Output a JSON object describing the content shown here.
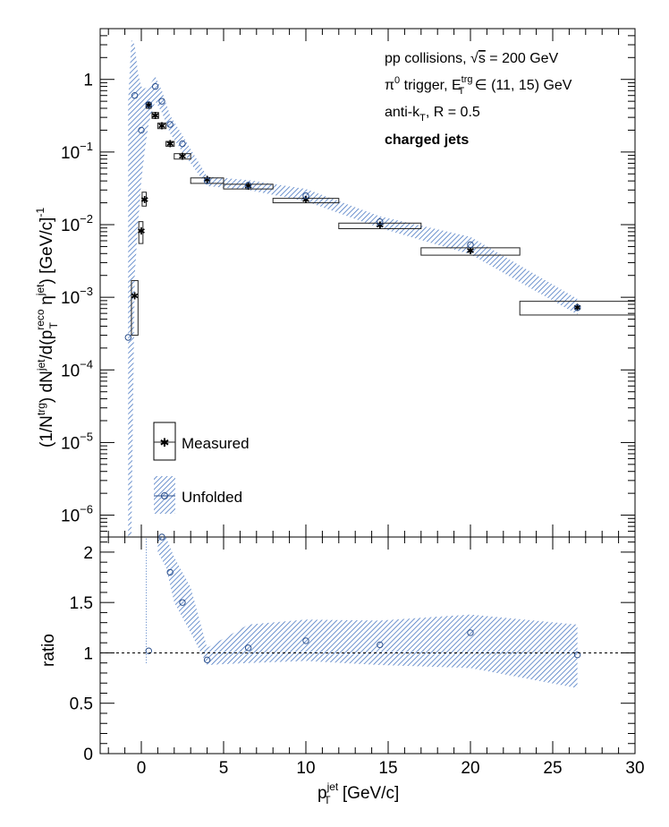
{
  "chart_data": {
    "type": "scatter",
    "colors": {
      "measured": "#222222",
      "unfolded": "#2b4f8c",
      "band": "#4a78c2"
    },
    "annotations": [
      "pp collisions, ",
      "π",
      "0",
      " trigger, E",
      "trg",
      "T",
      " ∈ (11, 15) GeV",
      "anti-k",
      "T",
      ", R = 0.5",
      "charged jets",
      "√",
      "s",
      " = 200 GeV"
    ],
    "top_panel": {
      "y_scale": "log",
      "ylim": [
        5e-07,
        5
      ],
      "xlim": [
        -2.5,
        30
      ],
      "ylabel_parts": [
        "(1/N",
        "trg",
        ") dN",
        "jet",
        "/d(p",
        "reco",
        "T",
        " η",
        "jet",
        ") [GeV/c]",
        "-1"
      ],
      "yticks": [
        {
          "value": 1,
          "label": "1",
          "exp": ""
        },
        {
          "value": 0.1,
          "label": "10",
          "exp": "−1"
        },
        {
          "value": 0.01,
          "label": "10",
          "exp": "−2"
        },
        {
          "value": 0.001,
          "label": "10",
          "exp": "−3"
        },
        {
          "value": 0.0001,
          "label": "10",
          "exp": "−4"
        },
        {
          "value": 1e-05,
          "label": "10",
          "exp": "−5"
        },
        {
          "value": 1e-06,
          "label": "10",
          "exp": "−6"
        }
      ],
      "series": [
        {
          "name": "Measured",
          "x": [
            -0.4,
            0.0,
            0.2,
            0.45,
            0.85,
            1.25,
            1.75,
            2.5,
            4.0,
            6.5,
            10.0,
            14.5,
            20.0,
            26.5
          ],
          "y": [
            0.00105,
            0.0082,
            0.022,
            0.44,
            0.32,
            0.23,
            0.13,
            0.088,
            0.042,
            0.034,
            0.022,
            0.0098,
            0.0044,
            0.00072
          ],
          "box_x": [
            [
              -0.6,
              -0.2
            ],
            [
              -0.15,
              0.1
            ],
            [
              0.05,
              0.3
            ],
            [
              0.3,
              0.6
            ],
            [
              0.65,
              1.05
            ],
            [
              1.0,
              1.5
            ],
            [
              1.5,
              2.0
            ],
            [
              2.0,
              3.0
            ],
            [
              3.0,
              5.0
            ],
            [
              5.0,
              8.0
            ],
            [
              8.0,
              12.0
            ],
            [
              12.0,
              17.0
            ],
            [
              17.0,
              23.0
            ],
            [
              23.0,
              30.0
            ]
          ],
          "box_y": [
            [
              0.0003,
              0.0017
            ],
            [
              0.0055,
              0.011
            ],
            [
              0.018,
              0.028
            ],
            [
              0.4,
              0.48
            ],
            [
              0.29,
              0.35
            ],
            [
              0.21,
              0.25
            ],
            [
              0.12,
              0.14
            ],
            [
              0.08,
              0.095
            ],
            [
              0.037,
              0.044
            ],
            [
              0.031,
              0.036
            ],
            [
              0.02,
              0.023
            ],
            [
              0.0088,
              0.0105
            ],
            [
              0.0038,
              0.0048
            ],
            [
              0.00057,
              0.00088
            ]
          ]
        },
        {
          "name": "Unfolded",
          "x": [
            -0.8,
            -0.4,
            0.0,
            0.45,
            0.85,
            1.25,
            1.75,
            2.5,
            4.0,
            6.5,
            10.0,
            14.5,
            20.0,
            26.5
          ],
          "y": [
            0.00028,
            0.6,
            0.2,
            0.45,
            0.8,
            0.5,
            0.24,
            0.13,
            0.04,
            0.035,
            0.025,
            0.011,
            0.0053,
            0.00072
          ],
          "band_x": [
            -0.8,
            -0.6,
            -0.4,
            -0.2,
            0.0,
            0.2,
            0.45,
            0.85,
            1.25,
            1.75,
            2.5,
            4.0,
            6.5,
            10.0,
            14.5,
            20.0,
            26.5
          ],
          "band_lo": [
            5e-07,
            5e-07,
            0.002,
            0.01,
            0.04,
            0.1,
            0.25,
            0.5,
            0.35,
            0.18,
            0.1,
            0.034,
            0.03,
            0.021,
            0.009,
            0.0039,
            0.00058
          ],
          "band_hi": [
            0.5,
            3.5,
            3.0,
            1.2,
            0.8,
            0.75,
            0.8,
            1.1,
            0.7,
            0.32,
            0.17,
            0.046,
            0.041,
            0.031,
            0.013,
            0.0068,
            0.00095
          ]
        }
      ],
      "legend": [
        "Measured",
        "Unfolded"
      ]
    },
    "bottom_panel": {
      "ylim": [
        0,
        2.15
      ],
      "ylabel": "ratio",
      "xlabel_parts": [
        "p",
        "jet",
        "T",
        " [GeV/c]"
      ],
      "xticks": [
        0,
        5,
        10,
        15,
        20,
        25,
        30
      ],
      "yticks": [
        0,
        0.5,
        1,
        1.5,
        2
      ],
      "ytick_labels": [
        "0",
        "0.5",
        "1",
        "1.5",
        "2"
      ],
      "reference_line": 1,
      "ratio": {
        "x": [
          0.45,
          1.25,
          1.75,
          2.5,
          4.0,
          6.5,
          10.0,
          14.5,
          20.0,
          26.5
        ],
        "y": [
          1.02,
          2.15,
          1.8,
          1.5,
          0.93,
          1.05,
          1.12,
          1.08,
          1.2,
          0.98
        ]
      },
      "band_x": [
        1.0,
        1.5,
        2.0,
        3.0,
        4.0,
        6.5,
        10.0,
        14.5,
        20.0,
        26.5
      ],
      "band_lo": [
        2.0,
        1.85,
        1.5,
        1.2,
        0.88,
        0.9,
        0.92,
        0.88,
        0.85,
        0.65
      ],
      "band_hi": [
        2.15,
        2.15,
        1.95,
        1.65,
        1.05,
        1.28,
        1.33,
        1.32,
        1.38,
        1.28
      ]
    }
  }
}
